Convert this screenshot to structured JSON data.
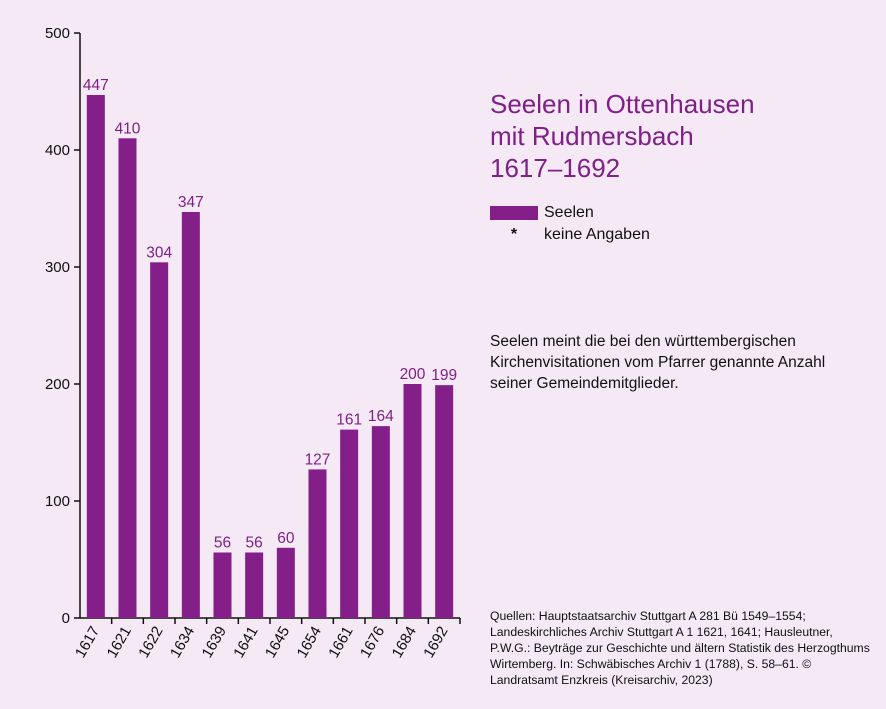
{
  "title_lines": [
    "Seelen in Ottenhausen",
    "mit Rudmersbach",
    "1617–1692"
  ],
  "legend": {
    "series_label": "Seelen",
    "marker_symbol": "*",
    "marker_label": "keine Angaben"
  },
  "note": "Seelen meint die bei den württembergischen Kirchenvisitationen vom Pfarrer genannte Anzahl seiner Gemeindemitglieder.",
  "sources": "Quellen: Hauptstaatsarchiv Stuttgart A 281 Bü 1549–1554; Landeskirchliches Archiv Stuttgart A 1 1621, 1641; Hausleutner, P.W.G.: Beyträge zur Geschichte und ältern Statistik des Herzogthums Wirtemberg. In: Schwäbisches Archiv 1 (1788), S. 58–61. © Landratsamt Enzkreis (Kreisarchiv, 2023)",
  "colors": {
    "background": "#f4e9f4",
    "bar": "#841f89",
    "accent_text": "#7f1f88"
  },
  "chart_data": {
    "type": "bar",
    "categories": [
      "1617",
      "1621",
      "1622",
      "1634",
      "1639",
      "1641",
      "1645",
      "1654",
      "1661",
      "1676",
      "1684",
      "1692"
    ],
    "series": [
      {
        "name": "Seelen",
        "values": [
          447,
          410,
          304,
          347,
          56,
          56,
          60,
          127,
          161,
          164,
          200,
          199
        ]
      }
    ],
    "ylim": [
      0,
      500
    ],
    "yticks": [
      0,
      100,
      200,
      300,
      400,
      500
    ],
    "xlabel": "",
    "ylabel": "",
    "grid": false,
    "legend_position": "right"
  }
}
